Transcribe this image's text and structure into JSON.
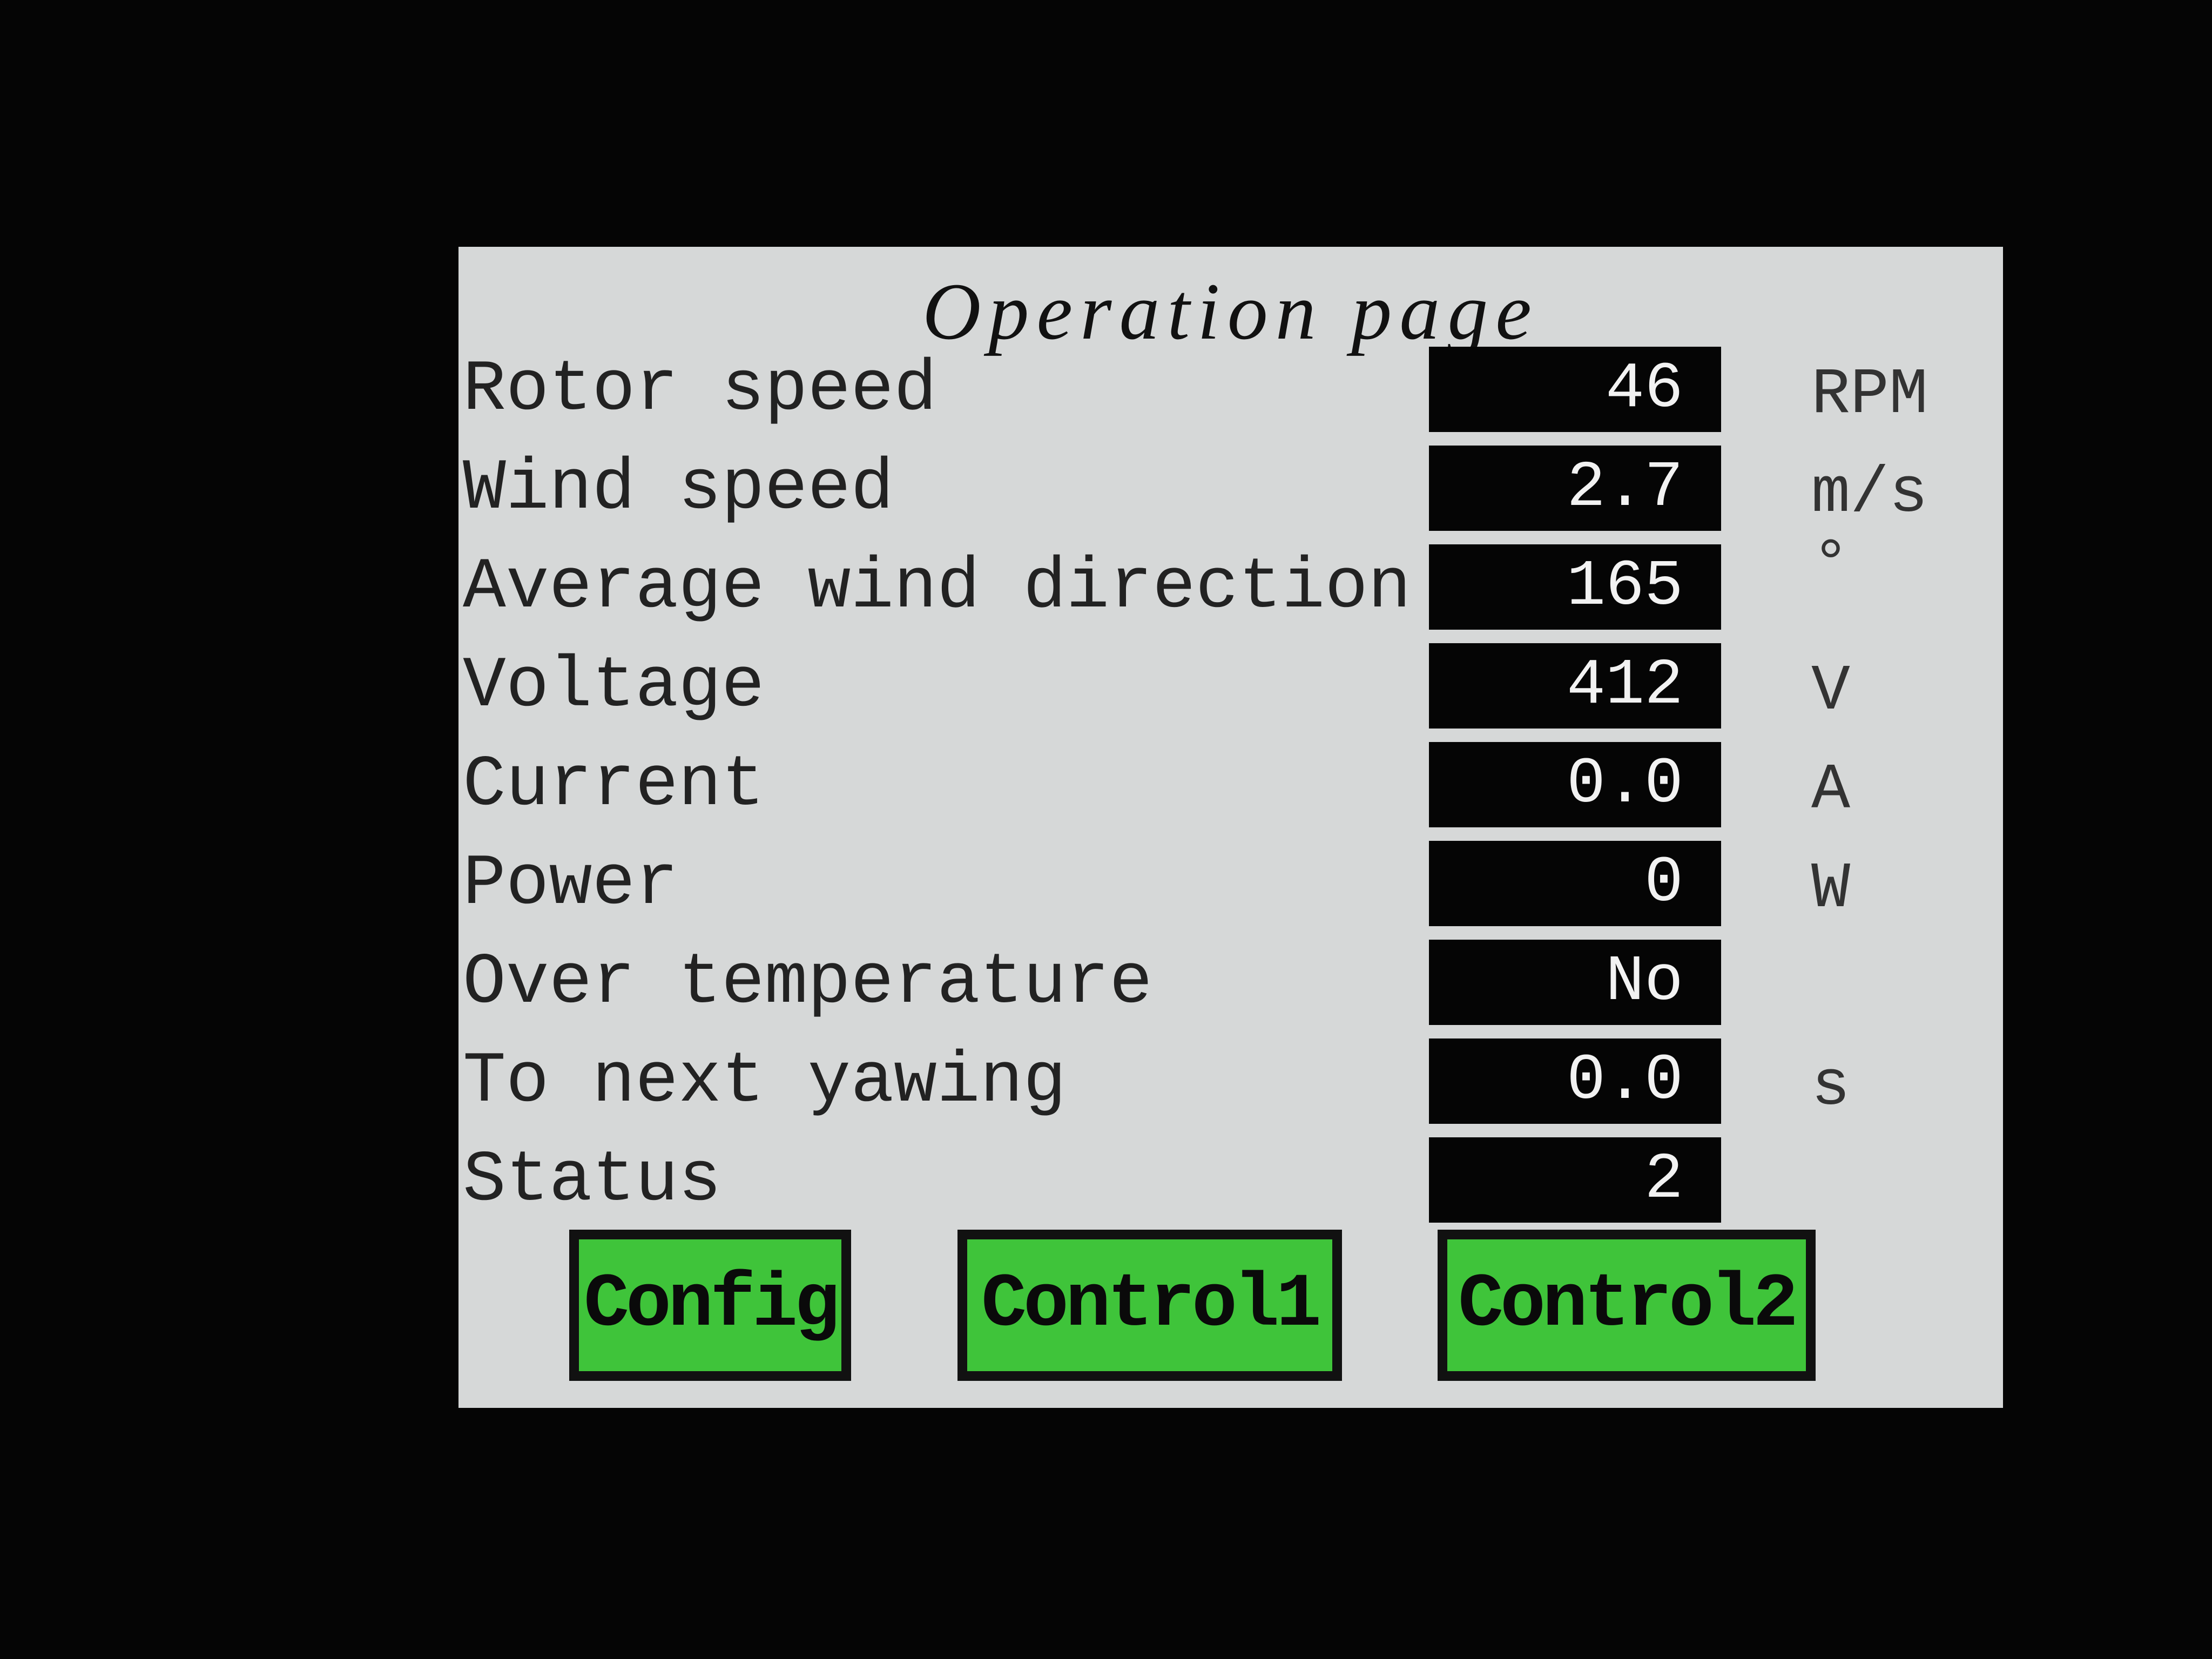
{
  "title": "Operation page",
  "rows": [
    {
      "label": "Rotor speed",
      "value": "46",
      "unit": "RPM"
    },
    {
      "label": "Wind speed",
      "value": "2.7",
      "unit": "m/s"
    },
    {
      "label": "Average wind direction",
      "value": "165",
      "unit": "°"
    },
    {
      "label": "Voltage",
      "value": "412",
      "unit": "V"
    },
    {
      "label": "Current",
      "value": "0.0",
      "unit": "A"
    },
    {
      "label": "Power",
      "value": "0",
      "unit": "W"
    },
    {
      "label": "Over temperature",
      "value": "No"
    },
    {
      "label": "To next yawing",
      "value": "0.0",
      "unit": "s"
    },
    {
      "label": "Status",
      "value": "2"
    }
  ],
  "buttons": [
    "Config",
    "Control1",
    "Control2"
  ]
}
